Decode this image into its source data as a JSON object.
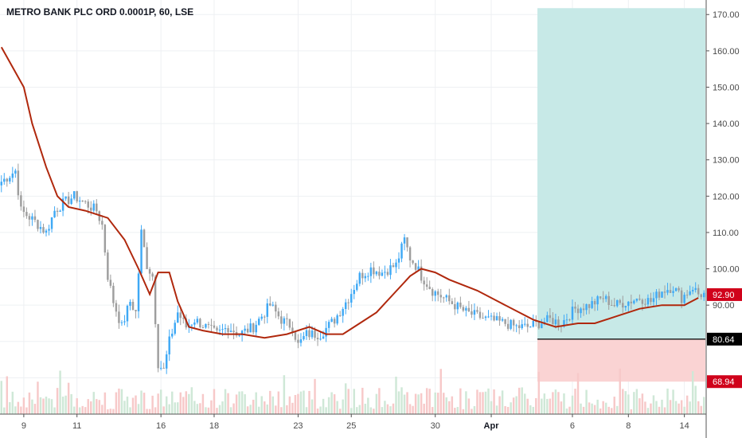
{
  "chart_data": {
    "type": "candlestick",
    "title": "METRO BANK PLC ORD 0.0001P, 60, LSE",
    "y_axis": {
      "ticks": [
        170,
        160,
        150,
        140,
        130,
        120,
        110,
        100,
        90
      ],
      "tick_labels": [
        "170.00",
        "160.00",
        "150.00",
        "140.00",
        "130.00",
        "120.00",
        "110.00",
        "100.00",
        "90.00"
      ],
      "range": [
        60,
        174
      ]
    },
    "x_axis": {
      "ticks": [
        {
          "label": "9",
          "bar": 8
        },
        {
          "label": "11",
          "bar": 27
        },
        {
          "label": "16",
          "bar": 57
        },
        {
          "label": "18",
          "bar": 76
        },
        {
          "label": "23",
          "bar": 106
        },
        {
          "label": "25",
          "bar": 125
        },
        {
          "label": "30",
          "bar": 155
        },
        {
          "label": "Apr",
          "bar": 175,
          "bold": true
        },
        {
          "label": "6",
          "bar": 204
        },
        {
          "label": "8",
          "bar": 224
        },
        {
          "label": "14",
          "bar": 244
        }
      ]
    },
    "bar_count": 252,
    "moving_average": {
      "color": "#b0280d",
      "values": [
        [
          0,
          161
        ],
        [
          8,
          150
        ],
        [
          11,
          140
        ],
        [
          16,
          128
        ],
        [
          20,
          120
        ],
        [
          24,
          117
        ],
        [
          30,
          116
        ],
        [
          38,
          114
        ],
        [
          44,
          108
        ],
        [
          49,
          100
        ],
        [
          53,
          93
        ],
        [
          56,
          99
        ],
        [
          60,
          99
        ],
        [
          63,
          91
        ],
        [
          67,
          84
        ],
        [
          72,
          83
        ],
        [
          79,
          82
        ],
        [
          86,
          82
        ],
        [
          94,
          81
        ],
        [
          102,
          82
        ],
        [
          110,
          84
        ],
        [
          116,
          82
        ],
        [
          122,
          82
        ],
        [
          128,
          85
        ],
        [
          134,
          88
        ],
        [
          140,
          93
        ],
        [
          146,
          98
        ],
        [
          150,
          100
        ],
        [
          155,
          99
        ],
        [
          160,
          97
        ],
        [
          170,
          94
        ],
        [
          180,
          90
        ],
        [
          190,
          86
        ],
        [
          198,
          84
        ],
        [
          206,
          85
        ],
        [
          212,
          85
        ],
        [
          220,
          87
        ],
        [
          228,
          89
        ],
        [
          236,
          90
        ],
        [
          244,
          90
        ],
        [
          249,
          92
        ]
      ]
    },
    "candles": {
      "up_color": "#3fa9f5",
      "down_color": "#9e9e9e",
      "anchors": [
        [
          0,
          124
        ],
        [
          5,
          127
        ],
        [
          7,
          116
        ],
        [
          12,
          113
        ],
        [
          16,
          110
        ],
        [
          19,
          116
        ],
        [
          22,
          118
        ],
        [
          26,
          120
        ],
        [
          30,
          118
        ],
        [
          34,
          116
        ],
        [
          36,
          112
        ],
        [
          38,
          98
        ],
        [
          40,
          91
        ],
        [
          43,
          84
        ],
        [
          46,
          91
        ],
        [
          48,
          88
        ],
        [
          50,
          110
        ],
        [
          52,
          101
        ],
        [
          54,
          98
        ],
        [
          56,
          74
        ],
        [
          58,
          72
        ],
        [
          60,
          80
        ],
        [
          63,
          88
        ],
        [
          66,
          84
        ],
        [
          69,
          86
        ],
        [
          73,
          84
        ],
        [
          77,
          82
        ],
        [
          81,
          84
        ],
        [
          85,
          82
        ],
        [
          90,
          84
        ],
        [
          96,
          90
        ],
        [
          100,
          86
        ],
        [
          104,
          84
        ],
        [
          106,
          79
        ],
        [
          109,
          82
        ],
        [
          114,
          82
        ],
        [
          119,
          86
        ],
        [
          124,
          92
        ],
        [
          128,
          98
        ],
        [
          132,
          100
        ],
        [
          136,
          99
        ],
        [
          141,
          101
        ],
        [
          144,
          108
        ],
        [
          146,
          103
        ],
        [
          148,
          101
        ],
        [
          150,
          98
        ],
        [
          154,
          94
        ],
        [
          158,
          92
        ],
        [
          162,
          90
        ],
        [
          166,
          88
        ],
        [
          170,
          87
        ],
        [
          174,
          86
        ],
        [
          180,
          85
        ],
        [
          184,
          84
        ],
        [
          188,
          84
        ],
        [
          192,
          85
        ],
        [
          196,
          86
        ],
        [
          200,
          85
        ],
        [
          205,
          89
        ],
        [
          210,
          90
        ],
        [
          215,
          92
        ],
        [
          219,
          90
        ],
        [
          224,
          91
        ],
        [
          228,
          92
        ],
        [
          232,
          91
        ],
        [
          236,
          94
        ],
        [
          240,
          95
        ],
        [
          243,
          92
        ],
        [
          247,
          95
        ],
        [
          249,
          93
        ]
      ]
    },
    "volume": {
      "up_color": "#cfe8d7",
      "down_color": "#f7c9c9"
    },
    "position_tool": {
      "start_bar": 192,
      "target_price": 170,
      "entry_price": 80.64,
      "stop_price": 68.94,
      "profit_color": "#c7e9e7",
      "loss_color": "#fad3d3"
    },
    "price_labels": [
      {
        "text": "92.90",
        "value": 92.9,
        "color": "#d0021b"
      },
      {
        "text": "80.64",
        "value": 80.64,
        "color": "#000000"
      },
      {
        "text": "68.94",
        "value": 68.94,
        "color": "#d0021b"
      }
    ]
  }
}
